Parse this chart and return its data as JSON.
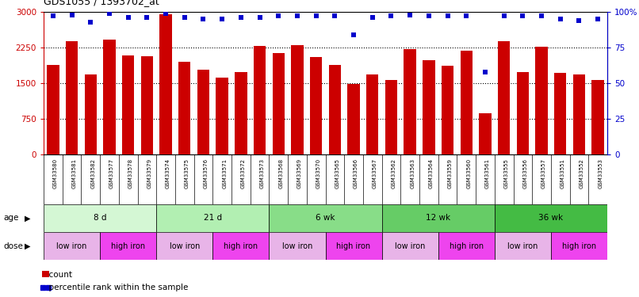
{
  "title": "GDS1055 / 1393702_at",
  "samples": [
    "GSM33580",
    "GSM33581",
    "GSM33582",
    "GSM33577",
    "GSM33578",
    "GSM33579",
    "GSM33574",
    "GSM33575",
    "GSM33576",
    "GSM33571",
    "GSM33572",
    "GSM33573",
    "GSM33568",
    "GSM33569",
    "GSM33570",
    "GSM33565",
    "GSM33566",
    "GSM33567",
    "GSM33562",
    "GSM33563",
    "GSM33564",
    "GSM33559",
    "GSM33560",
    "GSM33561",
    "GSM33555",
    "GSM33556",
    "GSM33557",
    "GSM33551",
    "GSM33552",
    "GSM33553"
  ],
  "counts": [
    1880,
    2390,
    1680,
    2420,
    2080,
    2070,
    2950,
    1950,
    1780,
    1620,
    1730,
    2280,
    2130,
    2300,
    2050,
    1880,
    1490,
    1680,
    1570,
    2210,
    1990,
    1870,
    2180,
    870,
    2380,
    1740,
    2270,
    1720,
    1680,
    1570
  ],
  "percentiles": [
    97,
    98,
    93,
    99,
    96,
    96,
    99,
    96,
    95,
    95,
    96,
    96,
    97,
    97,
    97,
    97,
    84,
    96,
    97,
    98,
    97,
    97,
    97,
    58,
    97,
    97,
    97,
    95,
    94,
    95
  ],
  "bar_color": "#cc0000",
  "dot_color": "#0000cc",
  "ylim_left": [
    0,
    3000
  ],
  "ylim_right": [
    0,
    100
  ],
  "yticks_left": [
    0,
    750,
    1500,
    2250,
    3000
  ],
  "yticks_right": [
    0,
    25,
    50,
    75,
    100
  ],
  "ytick_labels_right": [
    "0",
    "25",
    "50",
    "75",
    "100%"
  ],
  "age_groups": [
    {
      "label": "8 d",
      "start": 0,
      "end": 6,
      "color": "#d4f7d4"
    },
    {
      "label": "21 d",
      "start": 6,
      "end": 12,
      "color": "#b2efb2"
    },
    {
      "label": "6 wk",
      "start": 12,
      "end": 18,
      "color": "#88dd88"
    },
    {
      "label": "12 wk",
      "start": 18,
      "end": 24,
      "color": "#66cc66"
    },
    {
      "label": "36 wk",
      "start": 24,
      "end": 30,
      "color": "#44bb44"
    }
  ],
  "dose_groups": [
    {
      "label": "low iron",
      "start": 0,
      "end": 3,
      "color": "#e8b4e8"
    },
    {
      "label": "high iron",
      "start": 3,
      "end": 6,
      "color": "#ee44ee"
    },
    {
      "label": "low iron",
      "start": 6,
      "end": 9,
      "color": "#e8b4e8"
    },
    {
      "label": "high iron",
      "start": 9,
      "end": 12,
      "color": "#ee44ee"
    },
    {
      "label": "low iron",
      "start": 12,
      "end": 15,
      "color": "#e8b4e8"
    },
    {
      "label": "high iron",
      "start": 15,
      "end": 18,
      "color": "#ee44ee"
    },
    {
      "label": "low iron",
      "start": 18,
      "end": 21,
      "color": "#e8b4e8"
    },
    {
      "label": "high iron",
      "start": 21,
      "end": 24,
      "color": "#ee44ee"
    },
    {
      "label": "low iron",
      "start": 24,
      "end": 27,
      "color": "#e8b4e8"
    },
    {
      "label": "high iron",
      "start": 27,
      "end": 30,
      "color": "#ee44ee"
    }
  ],
  "xtick_bg": "#d8d8d8",
  "background_color": "#ffffff",
  "left_axis_color": "#cc0000",
  "right_axis_color": "#0000cc"
}
